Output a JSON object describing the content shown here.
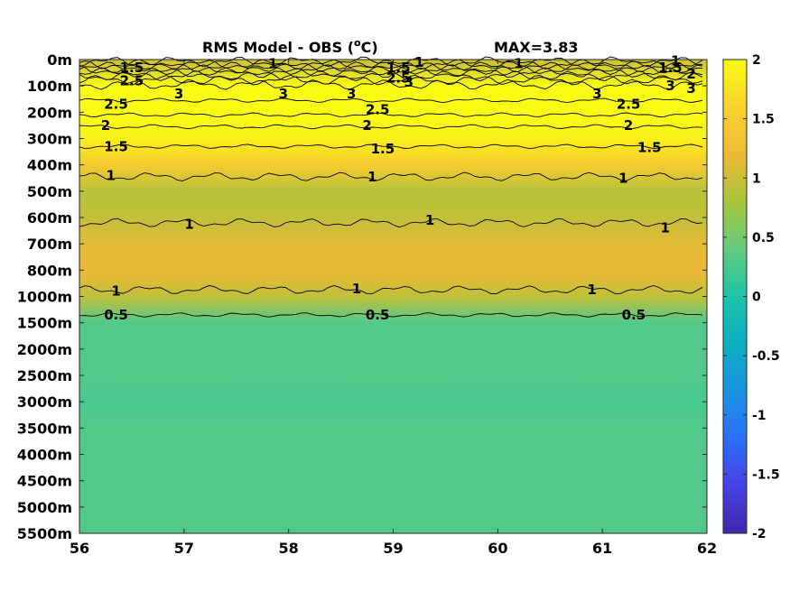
{
  "chart_data": {
    "type": "heatmap",
    "title": "RMS Model - OBS (",
    "title_sup": "o",
    "title_unit": "C)",
    "max_label": "MAX=3.83",
    "x": {
      "ticks": [
        56,
        57,
        58,
        59,
        60,
        61,
        62
      ],
      "tick_labels": [
        "56",
        "57",
        "58",
        "59",
        "60",
        "61",
        "62"
      ],
      "range": [
        56,
        62
      ]
    },
    "y": {
      "tick_labels": [
        "0m",
        "100m",
        "200m",
        "300m",
        "400m",
        "500m",
        "600m",
        "700m",
        "800m",
        "1000m",
        "1500m",
        "2000m",
        "2500m",
        "3000m",
        "3500m",
        "4000m",
        "4500m",
        "5000m",
        "5500m"
      ],
      "scale": "nonlinear depth (one level per tick)"
    },
    "colorbar": {
      "range": [
        -2,
        2
      ],
      "ticks": [
        2,
        1.5,
        1,
        0.5,
        0,
        -0.5,
        -1,
        -1.5,
        -2
      ],
      "tick_labels": [
        "2",
        "1.5",
        "1",
        "0.5",
        "0",
        "-0.5",
        "-1",
        "-1.5",
        "-2"
      ],
      "colormap": "parula"
    },
    "profile": {
      "depth_levels": [
        "0m",
        "100m",
        "200m",
        "300m",
        "400m",
        "500m",
        "600m",
        "700m",
        "800m",
        "1000m",
        "1500m",
        "2000m",
        "2500m",
        "3000m",
        "3500m",
        "4000m",
        "4500m",
        "5000m",
        "5500m"
      ],
      "values": [
        1.0,
        3.0,
        2.5,
        1.9,
        1.5,
        0.9,
        0.95,
        1.15,
        1.2,
        0.95,
        0.3,
        0.3,
        0.3,
        0.25,
        0.3,
        0.3,
        0.3,
        0.3,
        0.3
      ]
    },
    "contour_labels": [
      {
        "text": "1.5",
        "x": 56.5,
        "level": 0.3
      },
      {
        "text": "2.5",
        "x": 56.5,
        "level": 0.8
      },
      {
        "text": "1",
        "x": 57.85,
        "level": 0.15
      },
      {
        "text": "3",
        "x": 56.95,
        "level": 1.3
      },
      {
        "text": "3",
        "x": 57.95,
        "level": 1.3
      },
      {
        "text": "3",
        "x": 58.6,
        "level": 1.3
      },
      {
        "text": "1.5",
        "x": 59.05,
        "level": 0.3
      },
      {
        "text": "1",
        "x": 59.25,
        "level": 0.1
      },
      {
        "text": "2.5",
        "x": 59.05,
        "level": 0.7
      },
      {
        "text": "3",
        "x": 59.15,
        "level": 0.85
      },
      {
        "text": "1",
        "x": 60.2,
        "level": 0.15
      },
      {
        "text": "3",
        "x": 60.95,
        "level": 1.3
      },
      {
        "text": "1",
        "x": 61.7,
        "level": 0.05
      },
      {
        "text": "1.5",
        "x": 61.65,
        "level": 0.3
      },
      {
        "text": "2",
        "x": 61.85,
        "level": 0.55
      },
      {
        "text": "3",
        "x": 61.65,
        "level": 1.0
      },
      {
        "text": "3",
        "x": 61.85,
        "level": 1.1
      },
      {
        "text": "2.5",
        "x": 56.35,
        "level": 1.7
      },
      {
        "text": "2.5",
        "x": 58.85,
        "level": 1.9
      },
      {
        "text": "2.5",
        "x": 61.25,
        "level": 1.7
      },
      {
        "text": "2",
        "x": 56.25,
        "level": 2.5
      },
      {
        "text": "2",
        "x": 58.75,
        "level": 2.5
      },
      {
        "text": "2",
        "x": 61.25,
        "level": 2.5
      },
      {
        "text": "1.5",
        "x": 56.35,
        "level": 3.3
      },
      {
        "text": "1.5",
        "x": 58.9,
        "level": 3.4
      },
      {
        "text": "1.5",
        "x": 61.45,
        "level": 3.35
      },
      {
        "text": "1",
        "x": 56.3,
        "level": 4.4
      },
      {
        "text": "1",
        "x": 58.8,
        "level": 4.45
      },
      {
        "text": "1",
        "x": 61.2,
        "level": 4.5
      },
      {
        "text": "1",
        "x": 57.05,
        "level": 6.25
      },
      {
        "text": "1",
        "x": 59.35,
        "level": 6.1
      },
      {
        "text": "1",
        "x": 61.6,
        "level": 6.4
      },
      {
        "text": "1",
        "x": 56.35,
        "level": 8.8
      },
      {
        "text": "1",
        "x": 58.65,
        "level": 8.7
      },
      {
        "text": "1",
        "x": 60.9,
        "level": 8.75
      },
      {
        "text": "0.5",
        "x": 56.35,
        "level": 9.7
      },
      {
        "text": "0.5",
        "x": 58.85,
        "level": 9.7
      },
      {
        "text": "0.5",
        "x": 61.3,
        "level": 9.7
      }
    ]
  }
}
